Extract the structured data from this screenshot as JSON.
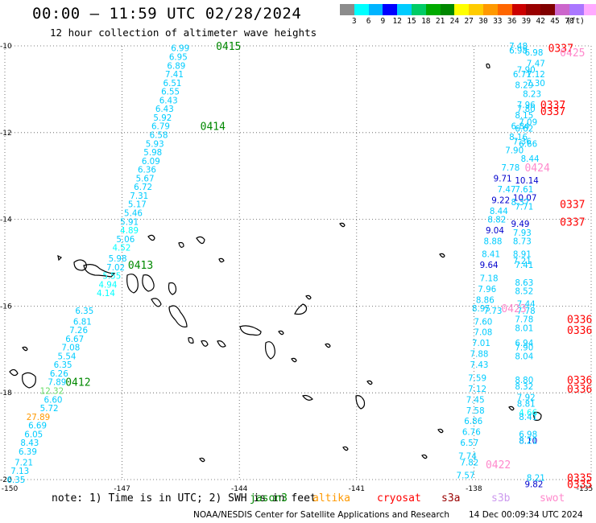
{
  "header": {
    "title": "00:00 — 11:59 UTC 02/28/2024",
    "subtitle": "12 hour collection of altimeter wave heights"
  },
  "colorbar": {
    "colors": [
      "#8c8c8c",
      "#00ffff",
      "#00b4ff",
      "#0000ff",
      "#00ccff",
      "#00cc66",
      "#00aa00",
      "#008800",
      "#ffff00",
      "#ffcc00",
      "#ff9900",
      "#ff6600",
      "#cc0000",
      "#990000",
      "#800000",
      "#cc66cc",
      "#aa77ff",
      "#ffaaff",
      "#000000"
    ],
    "labels": [
      "3",
      "6",
      "9",
      "12",
      "15",
      "18",
      "21",
      "24",
      "27",
      "30",
      "33",
      "36",
      "39",
      "42",
      "45",
      "70"
    ],
    "unit": "(ft)"
  },
  "axes": {
    "lat_labels": [
      "-10",
      "-12",
      "-14",
      "-16",
      "-18",
      "-20"
    ],
    "lon_labels": [
      "-150",
      "-147",
      "-144",
      "-141",
      "-138",
      "-135"
    ],
    "lat_values": [
      -10,
      -12,
      -14,
      -16,
      -18,
      -20
    ],
    "lon_values": [
      -150,
      -147,
      -144,
      -141,
      -138,
      -135
    ],
    "extent": {
      "lon_min": -150,
      "lon_max": -135,
      "lat_min": -20,
      "lat_max": -10
    }
  },
  "footer": {
    "note": "note: 1) Time is in UTC; 2) SWH is in feet",
    "satellites": [
      {
        "name": "jason3",
        "color": "#008800"
      },
      {
        "name": "altika",
        "color": "#ff9900"
      },
      {
        "name": "cryosat",
        "color": "#ff0000"
      },
      {
        "name": "s3a",
        "color": "#990000"
      },
      {
        "name": "s3b",
        "color": "#cc99ee"
      },
      {
        "name": "swot",
        "color": "#ff88cc"
      }
    ],
    "credit": "NOAA/NESDIS Center for Satellite Applications and Research",
    "generated": "14 Dec 00:09:34 UTC 2024"
  },
  "track_times": [
    {
      "label": "0415",
      "lon": -144.6,
      "lat": -10.0,
      "color": "#008800"
    },
    {
      "label": "0414",
      "lon": -145.0,
      "lat": -11.85,
      "color": "#008800"
    },
    {
      "label": "0413",
      "lon": -146.85,
      "lat": -15.05,
      "color": "#008800"
    },
    {
      "label": "0412",
      "lon": -148.45,
      "lat": -17.75,
      "color": "#008800"
    },
    {
      "label": "0337",
      "lon": -136.1,
      "lat": -10.05,
      "color": "#ff0000"
    },
    {
      "label": "0425",
      "lon": -135.8,
      "lat": -10.15,
      "color": "#ff88cc"
    },
    {
      "label": "0337",
      "lon": -136.3,
      "lat": -11.35,
      "color": "#ff0000"
    },
    {
      "label": "0337",
      "lon": -136.3,
      "lat": -11.5,
      "color": "#ff0000"
    },
    {
      "label": "0424",
      "lon": -136.7,
      "lat": -12.8,
      "color": "#ff88cc"
    },
    {
      "label": "0337",
      "lon": -135.8,
      "lat": -13.65,
      "color": "#ff0000"
    },
    {
      "label": "0337",
      "lon": -135.8,
      "lat": -14.05,
      "color": "#ff0000"
    },
    {
      "label": "0423",
      "lon": -137.3,
      "lat": -16.05,
      "color": "#ff88cc"
    },
    {
      "label": "0336",
      "lon": -135.5,
      "lat": -16.3,
      "color": "#ff0000"
    },
    {
      "label": "0336",
      "lon": -135.5,
      "lat": -16.55,
      "color": "#ff0000"
    },
    {
      "label": "0336",
      "lon": -135.4,
      "lat": -17.7,
      "color": "#ff0000"
    },
    {
      "label": "0336",
      "lon": -135.4,
      "lat": -17.9,
      "color": "#ff0000"
    },
    {
      "label": "0422",
      "lon": -137.7,
      "lat": -19.65,
      "color": "#ff88cc"
    },
    {
      "label": "0335",
      "lon": -135.0,
      "lat": -19.95,
      "color": "#ff0000"
    },
    {
      "label": "0335",
      "lon": -135.0,
      "lat": -20.1,
      "color": "#ff0000"
    }
  ],
  "observations": [
    {
      "v": "6.99",
      "lon": -145.75,
      "lat": -10.05,
      "c": "#00ccff"
    },
    {
      "v": "6.95",
      "lon": -145.8,
      "lat": -10.25,
      "c": "#00ccff"
    },
    {
      "v": "6.89",
      "lon": -145.85,
      "lat": -10.45,
      "c": "#00ccff"
    },
    {
      "v": "7.41",
      "lon": -145.9,
      "lat": -10.65,
      "c": "#00ccff"
    },
    {
      "v": "6.51",
      "lon": -145.95,
      "lat": -10.85,
      "c": "#00ccff"
    },
    {
      "v": "6.55",
      "lon": -146.0,
      "lat": -11.05,
      "c": "#00ccff"
    },
    {
      "v": "6.43",
      "lon": -146.05,
      "lat": -11.25,
      "c": "#00ccff"
    },
    {
      "v": "6.43",
      "lon": -146.15,
      "lat": -11.45,
      "c": "#00ccff"
    },
    {
      "v": "5.92",
      "lon": -146.2,
      "lat": -11.65,
      "c": "#00ccff"
    },
    {
      "v": "6.79",
      "lon": -146.25,
      "lat": -11.85,
      "c": "#00ccff"
    },
    {
      "v": "6.58",
      "lon": -146.3,
      "lat": -12.05,
      "c": "#00ccff"
    },
    {
      "v": "5.93",
      "lon": -146.4,
      "lat": -12.25,
      "c": "#00ccff"
    },
    {
      "v": "5.98",
      "lon": -146.45,
      "lat": -12.45,
      "c": "#00ccff"
    },
    {
      "v": "6.09",
      "lon": -146.5,
      "lat": -12.65,
      "c": "#00ccff"
    },
    {
      "v": "6.36",
      "lon": -146.6,
      "lat": -12.85,
      "c": "#00ccff"
    },
    {
      "v": "5.67",
      "lon": -146.65,
      "lat": -13.05,
      "c": "#00ccff"
    },
    {
      "v": "6.72",
      "lon": -146.7,
      "lat": -13.25,
      "c": "#00ccff"
    },
    {
      "v": "7.31",
      "lon": -146.8,
      "lat": -13.45,
      "c": "#00ccff"
    },
    {
      "v": "5.17",
      "lon": -146.85,
      "lat": -13.65,
      "c": "#00ccff"
    },
    {
      "v": "5.46",
      "lon": -146.95,
      "lat": -13.85,
      "c": "#00ccff"
    },
    {
      "v": "5.91",
      "lon": -147.05,
      "lat": -14.05,
      "c": "#00ccff"
    },
    {
      "v": "4.89",
      "lon": -147.05,
      "lat": -14.25,
      "c": "#00ffff"
    },
    {
      "v": "5.06",
      "lon": -147.15,
      "lat": -14.45,
      "c": "#00ccff"
    },
    {
      "v": "4.52",
      "lon": -147.25,
      "lat": -14.65,
      "c": "#00ffff"
    },
    {
      "v": "5.98",
      "lon": -147.35,
      "lat": -14.9,
      "c": "#00ccff"
    },
    {
      "v": "7.02",
      "lon": -147.4,
      "lat": -15.1,
      "c": "#00ccff"
    },
    {
      "v": "5.55",
      "lon": -147.5,
      "lat": -15.3,
      "c": "#00ffff"
    },
    {
      "v": "4.94",
      "lon": -147.6,
      "lat": -15.5,
      "c": "#00ffff"
    },
    {
      "v": "4.14",
      "lon": -147.65,
      "lat": -15.7,
      "c": "#00ffff"
    },
    {
      "v": "6.35",
      "lon": -148.2,
      "lat": -16.1,
      "c": "#00ccff"
    },
    {
      "v": "6.81",
      "lon": -148.25,
      "lat": -16.35,
      "c": "#00ccff"
    },
    {
      "v": "7.26",
      "lon": -148.35,
      "lat": -16.55,
      "c": "#00ccff"
    },
    {
      "v": "6.67",
      "lon": -148.45,
      "lat": -16.75,
      "c": "#00ccff"
    },
    {
      "v": "7.08",
      "lon": -148.55,
      "lat": -16.95,
      "c": "#00ccff"
    },
    {
      "v": "5.54",
      "lon": -148.65,
      "lat": -17.15,
      "c": "#00ccff"
    },
    {
      "v": "6.35",
      "lon": -148.75,
      "lat": -17.35,
      "c": "#00ccff"
    },
    {
      "v": "6.26",
      "lon": -148.85,
      "lat": -17.55,
      "c": "#00ccff"
    },
    {
      "v": "7.89",
      "lon": -148.9,
      "lat": -17.75,
      "c": "#00ccff"
    },
    {
      "v": "12.32",
      "lon": -149.1,
      "lat": -17.95,
      "c": "#66dd66"
    },
    {
      "v": "6.60",
      "lon": -149.0,
      "lat": -18.15,
      "c": "#00ccff"
    },
    {
      "v": "5.72",
      "lon": -149.1,
      "lat": -18.35,
      "c": "#00ccff"
    },
    {
      "v": "27.89",
      "lon": -149.45,
      "lat": -18.55,
      "c": "#ff9900"
    },
    {
      "v": "6.69",
      "lon": -149.4,
      "lat": -18.75,
      "c": "#00ccff"
    },
    {
      "v": "6.05",
      "lon": -149.5,
      "lat": -18.95,
      "c": "#00ccff"
    },
    {
      "v": "8.43",
      "lon": -149.6,
      "lat": -19.15,
      "c": "#00ccff"
    },
    {
      "v": "6.39",
      "lon": -149.65,
      "lat": -19.35,
      "c": "#00ccff"
    },
    {
      "v": "7.21",
      "lon": -149.75,
      "lat": -19.6,
      "c": "#00ccff"
    },
    {
      "v": "7.13",
      "lon": -149.85,
      "lat": -19.8,
      "c": "#00ccff"
    },
    {
      "v": "6.35",
      "lon": -149.95,
      "lat": -20.0,
      "c": "#00ccff"
    },
    {
      "v": "7.48",
      "lon": -137.1,
      "lat": -10.0,
      "c": "#00ccff"
    },
    {
      "v": "6.98",
      "lon": -137.1,
      "lat": -10.1,
      "c": "#00ccff"
    },
    {
      "v": "6.98",
      "lon": -136.7,
      "lat": -10.15,
      "c": "#00ccff"
    },
    {
      "v": "7.47",
      "lon": -136.65,
      "lat": -10.4,
      "c": "#00ccff"
    },
    {
      "v": "7.90",
      "lon": -136.9,
      "lat": -10.55,
      "c": "#00ccff"
    },
    {
      "v": "6.71",
      "lon": -137.0,
      "lat": -10.65,
      "c": "#00ccff"
    },
    {
      "v": "7.12",
      "lon": -136.65,
      "lat": -10.65,
      "c": "#00ccff"
    },
    {
      "v": "7.30",
      "lon": -136.65,
      "lat": -10.85,
      "c": "#00ccff"
    },
    {
      "v": "8.29",
      "lon": -136.95,
      "lat": -10.9,
      "c": "#00ccff"
    },
    {
      "v": "8.23",
      "lon": -136.75,
      "lat": -11.1,
      "c": "#00ccff"
    },
    {
      "v": "7.96",
      "lon": -136.9,
      "lat": -11.35,
      "c": "#00ccff"
    },
    {
      "v": "7.80",
      "lon": -136.9,
      "lat": -11.45,
      "c": "#00ccff"
    },
    {
      "v": "8.15",
      "lon": -136.95,
      "lat": -11.6,
      "c": "#00ccff"
    },
    {
      "v": "7.09",
      "lon": -136.85,
      "lat": -11.75,
      "c": "#00ccff"
    },
    {
      "v": "6.84",
      "lon": -137.05,
      "lat": -11.85,
      "c": "#00ccff"
    },
    {
      "v": "6.62",
      "lon": -136.95,
      "lat": -11.9,
      "c": "#00ccff"
    },
    {
      "v": "8.16",
      "lon": -137.1,
      "lat": -12.1,
      "c": "#00ccff"
    },
    {
      "v": "7.36",
      "lon": -137.0,
      "lat": -12.2,
      "c": "#00ccff"
    },
    {
      "v": "6.66",
      "lon": -136.85,
      "lat": -12.25,
      "c": "#00ccff"
    },
    {
      "v": "7.90",
      "lon": -137.2,
      "lat": -12.4,
      "c": "#00ccff"
    },
    {
      "v": "8.44",
      "lon": -136.8,
      "lat": -12.6,
      "c": "#00ccff"
    },
    {
      "v": "7.78",
      "lon": -137.3,
      "lat": -12.8,
      "c": "#00ccff"
    },
    {
      "v": "9.71",
      "lon": -137.5,
      "lat": -13.05,
      "c": "#0000cc"
    },
    {
      "v": "10.14",
      "lon": -136.95,
      "lat": -13.1,
      "c": "#0000cc"
    },
    {
      "v": "7.61",
      "lon": -136.95,
      "lat": -13.3,
      "c": "#00ccff"
    },
    {
      "v": "7.47",
      "lon": -137.4,
      "lat": -13.3,
      "c": "#00ccff"
    },
    {
      "v": "10.07",
      "lon": -137.0,
      "lat": -13.5,
      "c": "#0000cc"
    },
    {
      "v": "9.22",
      "lon": -137.55,
      "lat": -13.55,
      "c": "#0000cc"
    },
    {
      "v": "8.37",
      "lon": -137.05,
      "lat": -13.6,
      "c": "#00ccff"
    },
    {
      "v": "7.71",
      "lon": -136.95,
      "lat": -13.7,
      "c": "#00ccff"
    },
    {
      "v": "8.44",
      "lon": -137.6,
      "lat": -13.8,
      "c": "#00ccff"
    },
    {
      "v": "8.82",
      "lon": -137.65,
      "lat": -14.0,
      "c": "#00ccff"
    },
    {
      "v": "9.49",
      "lon": -137.05,
      "lat": -14.1,
      "c": "#0000cc"
    },
    {
      "v": "9.04",
      "lon": -137.7,
      "lat": -14.25,
      "c": "#0000cc"
    },
    {
      "v": "7.93",
      "lon": -137.0,
      "lat": -14.3,
      "c": "#00ccff"
    },
    {
      "v": "8.88",
      "lon": -137.75,
      "lat": -14.5,
      "c": "#00ccff"
    },
    {
      "v": "8.73",
      "lon": -137.0,
      "lat": -14.5,
      "c": "#00ccff"
    },
    {
      "v": "8.41",
      "lon": -137.8,
      "lat": -14.8,
      "c": "#00ccff"
    },
    {
      "v": "8.91",
      "lon": -137.0,
      "lat": -14.8,
      "c": "#00ccff"
    },
    {
      "v": "7.21",
      "lon": -137.0,
      "lat": -14.95,
      "c": "#00ccff"
    },
    {
      "v": "7.41",
      "lon": -136.95,
      "lat": -15.05,
      "c": "#00ccff"
    },
    {
      "v": "9.64",
      "lon": -137.85,
      "lat": -15.05,
      "c": "#0000cc"
    },
    {
      "v": "7.18",
      "lon": -137.85,
      "lat": -15.35,
      "c": "#00ccff"
    },
    {
      "v": "8.63",
      "lon": -136.95,
      "lat": -15.45,
      "c": "#00ccff"
    },
    {
      "v": "7.96",
      "lon": -137.9,
      "lat": -15.6,
      "c": "#00ccff"
    },
    {
      "v": "8.52",
      "lon": -136.95,
      "lat": -15.65,
      "c": "#00ccff"
    },
    {
      "v": "8.86",
      "lon": -137.95,
      "lat": -15.85,
      "c": "#00ccff"
    },
    {
      "v": "7.44",
      "lon": -136.9,
      "lat": -15.95,
      "c": "#00ccff"
    },
    {
      "v": "8.95",
      "lon": -138.05,
      "lat": -16.05,
      "c": "#00ccff"
    },
    {
      "v": "7.73",
      "lon": -137.75,
      "lat": -16.1,
      "c": "#00ccff"
    },
    {
      "v": "7.78",
      "lon": -136.9,
      "lat": -16.1,
      "c": "#00ccff"
    },
    {
      "v": "7.60",
      "lon": -138.0,
      "lat": -16.35,
      "c": "#00ccff"
    },
    {
      "v": "7.78",
      "lon": -136.95,
      "lat": -16.3,
      "c": "#00ccff"
    },
    {
      "v": "8.01",
      "lon": -136.95,
      "lat": -16.5,
      "c": "#00ccff"
    },
    {
      "v": "7.08",
      "lon": -138.0,
      "lat": -16.6,
      "c": "#00ccff"
    },
    {
      "v": "6.94",
      "lon": -136.95,
      "lat": -16.85,
      "c": "#00ccff"
    },
    {
      "v": "7.01",
      "lon": -138.05,
      "lat": -16.85,
      "c": "#00ccff"
    },
    {
      "v": "7.90",
      "lon": -136.95,
      "lat": -16.95,
      "c": "#00ccff"
    },
    {
      "v": "7.88",
      "lon": -138.1,
      "lat": -17.1,
      "c": "#00ccff"
    },
    {
      "v": "8.04",
      "lon": -136.95,
      "lat": -17.15,
      "c": "#00ccff"
    },
    {
      "v": "7.43",
      "lon": -138.1,
      "lat": -17.35,
      "c": "#00ccff"
    },
    {
      "v": "8.80",
      "lon": -136.95,
      "lat": -17.7,
      "c": "#00ccff"
    },
    {
      "v": "7.59",
      "lon": -138.15,
      "lat": -17.65,
      "c": "#00ccff"
    },
    {
      "v": "8.32",
      "lon": -136.95,
      "lat": -17.85,
      "c": "#00ccff"
    },
    {
      "v": "7.12",
      "lon": -138.15,
      "lat": -17.9,
      "c": "#00ccff"
    },
    {
      "v": "7.92",
      "lon": -136.9,
      "lat": -18.1,
      "c": "#00ccff"
    },
    {
      "v": "7.45",
      "lon": -138.2,
      "lat": -18.15,
      "c": "#00ccff"
    },
    {
      "v": "8.81",
      "lon": -136.9,
      "lat": -18.25,
      "c": "#00ccff"
    },
    {
      "v": "7.58",
      "lon": -138.2,
      "lat": -18.4,
      "c": "#00ccff"
    },
    {
      "v": "4.66",
      "lon": -136.85,
      "lat": -18.45,
      "c": "#00ffff"
    },
    {
      "v": "8.41",
      "lon": -136.85,
      "lat": -18.55,
      "c": "#00ccff"
    },
    {
      "v": "6.86",
      "lon": -138.25,
      "lat": -18.65,
      "c": "#00ccff"
    },
    {
      "v": "6.76",
      "lon": -138.3,
      "lat": -18.9,
      "c": "#00ccff"
    },
    {
      "v": "6.98",
      "lon": -136.85,
      "lat": -18.95,
      "c": "#00ccff"
    },
    {
      "v": "8.10",
      "lon": -136.85,
      "lat": -19.1,
      "c": "#0000cc"
    },
    {
      "v": "6.57",
      "lon": -138.35,
      "lat": -19.15,
      "c": "#00ccff"
    },
    {
      "v": "8.21",
      "lon": -136.85,
      "lat": -19.1,
      "c": "#00ccff"
    },
    {
      "v": "7.74",
      "lon": -138.4,
      "lat": -19.45,
      "c": "#00ccff"
    },
    {
      "v": "7.82",
      "lon": -138.35,
      "lat": -19.6,
      "c": "#00ccff"
    },
    {
      "v": "7.57",
      "lon": -138.45,
      "lat": -19.9,
      "c": "#00ccff"
    },
    {
      "v": "8.21",
      "lon": -136.65,
      "lat": -19.95,
      "c": "#00ccff"
    },
    {
      "v": "9.82",
      "lon": -136.7,
      "lat": -20.1,
      "c": "#0000cc"
    }
  ]
}
